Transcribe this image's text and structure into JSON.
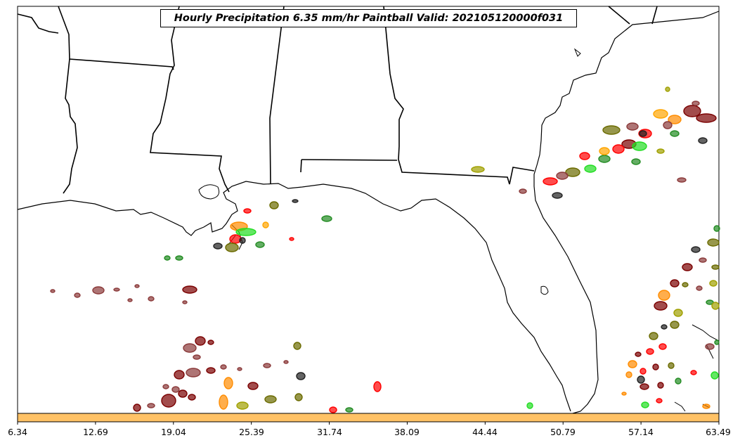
{
  "title": "Hourly Precipitation 6.35 mm/hr Paintball Valid: 202105120000f031",
  "colorbar": {
    "color": "#ffc266",
    "ticks": [
      "6.34",
      "12.69",
      "19.04",
      "25.39",
      "31.74",
      "38.09",
      "44.44",
      "50.79",
      "57.14",
      "63.49"
    ]
  },
  "palette": {
    "dark_red": "#7a0000",
    "brown": "#8b3a3a",
    "red": "#ff0000",
    "orange": "#ff8c00",
    "gold": "#ffa500",
    "olive": "#6b6b00",
    "khaki": "#a0a000",
    "green": "#228b22",
    "lime": "#22dd22",
    "black": "#222222"
  }
}
